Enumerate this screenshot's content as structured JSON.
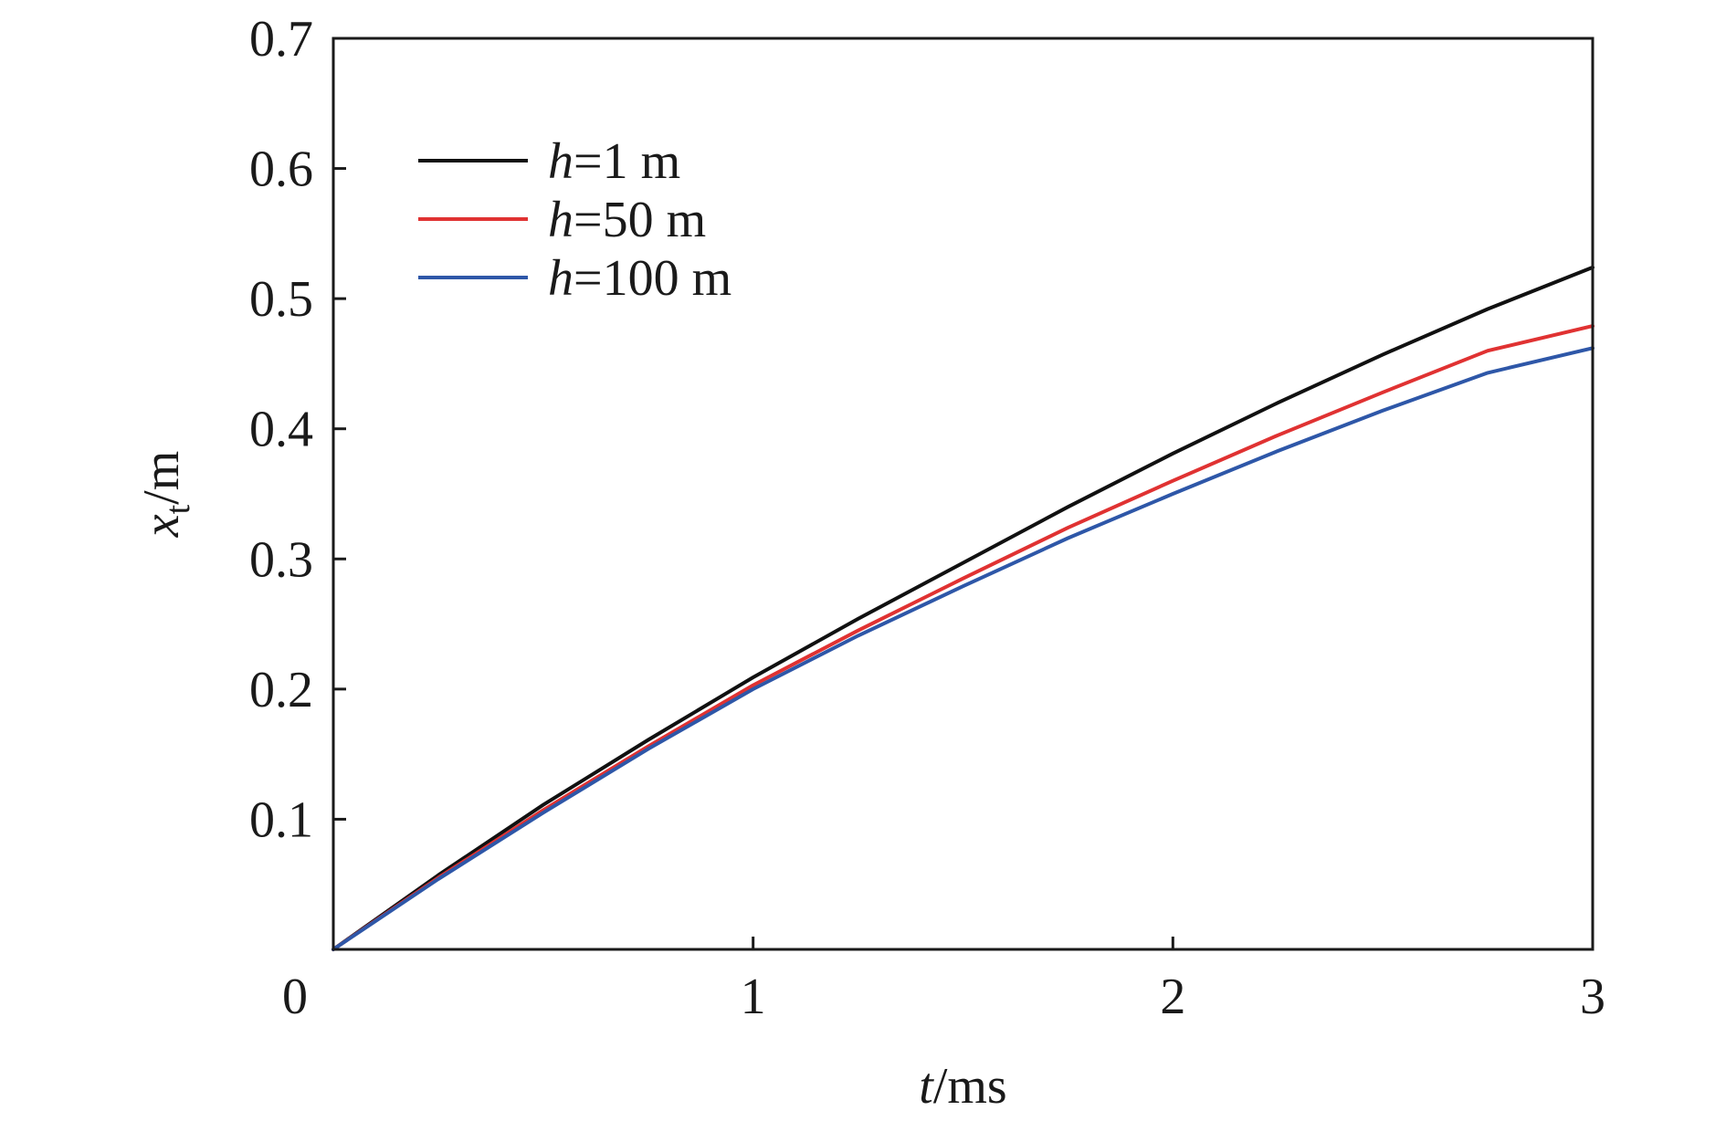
{
  "chart_data": {
    "type": "line",
    "title": "",
    "xlabel": {
      "var": "t",
      "unit": "/ms"
    },
    "ylabel": {
      "var": "x",
      "sub": "t",
      "unit": "/m"
    },
    "xlim": [
      0,
      3
    ],
    "ylim": [
      0,
      0.7
    ],
    "xticks": [
      0,
      1,
      2,
      3
    ],
    "xtick_labels": [
      "0",
      "1",
      "2",
      "3"
    ],
    "yticks": [
      0.1,
      0.2,
      0.3,
      0.4,
      0.5,
      0.6,
      0.7
    ],
    "ytick_labels": [
      "0.1",
      "0.2",
      "0.3",
      "0.4",
      "0.5",
      "0.6",
      "0.7"
    ],
    "grid": false,
    "legend_position": "top-left",
    "x": [
      0,
      0.25,
      0.5,
      0.75,
      1.0,
      1.25,
      1.5,
      1.75,
      2.0,
      2.25,
      2.5,
      2.75,
      3.0
    ],
    "series": [
      {
        "name_var": "h",
        "name_rest": "=1 m",
        "color": "#111111",
        "values": [
          0,
          0.057,
          0.111,
          0.161,
          0.209,
          0.254,
          0.297,
          0.34,
          0.381,
          0.42,
          0.457,
          0.492,
          0.524
        ]
      },
      {
        "name_var": "h",
        "name_rest": "=50 m",
        "color": "#e03232",
        "values": [
          0,
          0.055,
          0.107,
          0.156,
          0.203,
          0.245,
          0.285,
          0.324,
          0.36,
          0.395,
          0.428,
          0.46,
          0.479
        ]
      },
      {
        "name_var": "h",
        "name_rest": "=100 m",
        "color": "#2e57a8",
        "values": [
          0,
          0.054,
          0.105,
          0.154,
          0.2,
          0.241,
          0.279,
          0.316,
          0.35,
          0.383,
          0.414,
          0.443,
          0.462
        ]
      }
    ]
  }
}
